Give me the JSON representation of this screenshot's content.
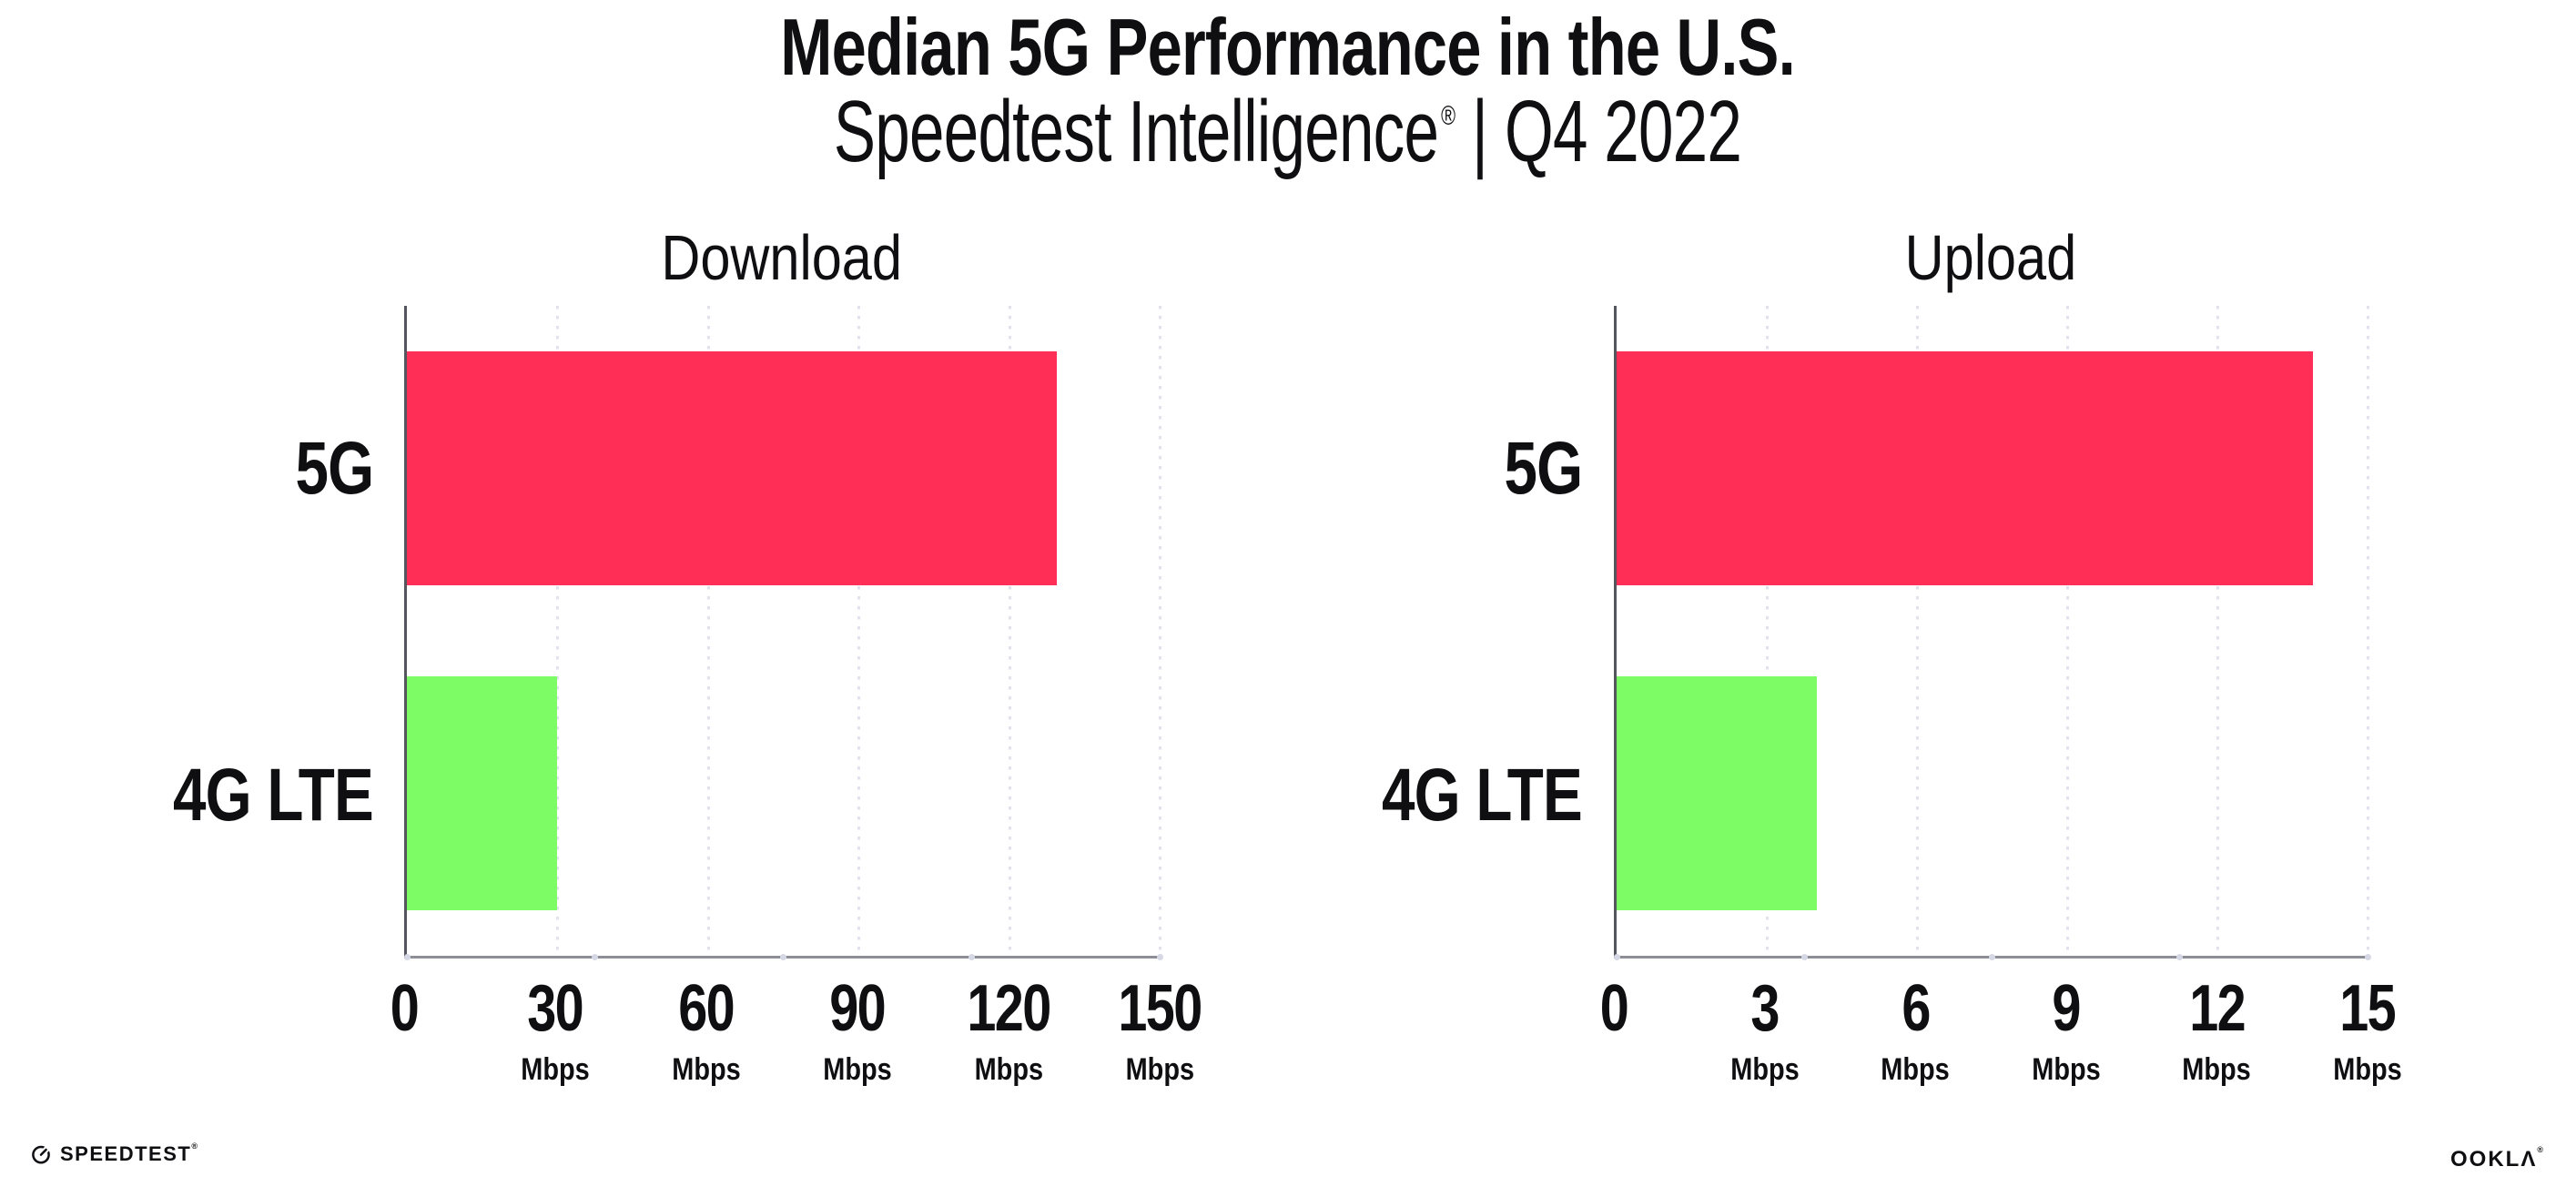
{
  "header": {
    "title": "Median 5G Performance in the U.S.",
    "subtitle": {
      "brand": "Speedtest Intelligence",
      "registered_mark": "®",
      "separator": "|",
      "period": "Q4 2022"
    }
  },
  "chart_data": [
    {
      "type": "bar",
      "orientation": "horizontal",
      "title": "Download",
      "categories": [
        "5G",
        "4G LTE"
      ],
      "values": [
        129.5,
        29.9
      ],
      "value_unit": "Mbps",
      "series_colors": [
        "#FF2E57",
        "#7DFC66"
      ],
      "xlim": [
        0,
        150
      ],
      "xticks": [
        0,
        30,
        60,
        90,
        120,
        150
      ],
      "xtick_unit_label": "Mbps",
      "xtick_unit_on_zero": false,
      "grid": "vertical-dotted",
      "xlabel": "",
      "ylabel": ""
    },
    {
      "type": "bar",
      "orientation": "horizontal",
      "title": "Upload",
      "categories": [
        "5G",
        "4G LTE"
      ],
      "values": [
        13.9,
        4.0
      ],
      "value_unit": "Mbps",
      "series_colors": [
        "#FF2E57",
        "#7DFC66"
      ],
      "xlim": [
        0,
        15
      ],
      "xticks": [
        0,
        3,
        6,
        9,
        12,
        15
      ],
      "xtick_unit_label": "Mbps",
      "xtick_unit_on_zero": false,
      "grid": "vertical-dotted",
      "xlabel": "",
      "ylabel": ""
    }
  ],
  "footer": {
    "speedtest": {
      "label": "SPEEDTEST",
      "mark": "®",
      "icon": "speedtest-gauge-icon"
    },
    "ookla": {
      "label": "OOKLA",
      "stylized": "OOKLΛ",
      "mark": "®"
    }
  },
  "colors": {
    "bar_5g": "#FF2E57",
    "bar_4g_lte": "#7DFC66",
    "gridline": "#E2E2EE",
    "axis_left_spine": "#55555E",
    "axis_bottom_spine": "#8E8E96",
    "axis_quarter_dot": "#D7D8E6",
    "text": "#0F0F12",
    "background": "#FFFFFF"
  }
}
